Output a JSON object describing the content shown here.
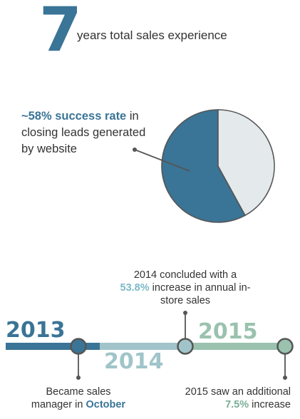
{
  "headline": {
    "number": "7",
    "label": "years total sales experience"
  },
  "pie": {
    "highlight": "~58% success rate",
    "caption_rest": " in closing leads generated by website"
  },
  "chart_data": {
    "type": "pie",
    "slices": [
      {
        "value": 58,
        "color": "#3a7496"
      },
      {
        "value": 42,
        "color": "#e4eaec"
      }
    ]
  },
  "timeline": {
    "years": [
      {
        "label": "2013",
        "color": "#3a7496"
      },
      {
        "label": "2014",
        "color": "#a0c4c9"
      },
      {
        "label": "2015",
        "color": "#9ac2ae"
      }
    ],
    "note_2013": {
      "prefix": "Became sales manager in ",
      "highlight": "October"
    },
    "note_2014": {
      "line1": "2014 concluded with a",
      "highlight": "53.8%",
      "suffix": " increase in annual in-store sales"
    },
    "note_2015": {
      "prefix": "2015 saw an additional",
      "highlight": "7.5%",
      "suffix": " increase"
    }
  },
  "colors": {
    "dark_blue": "#3a7496",
    "light_teal": "#a0c4c9",
    "sage": "#9ac2ae",
    "pie_light": "#e4eaec",
    "connector": "#555555"
  }
}
